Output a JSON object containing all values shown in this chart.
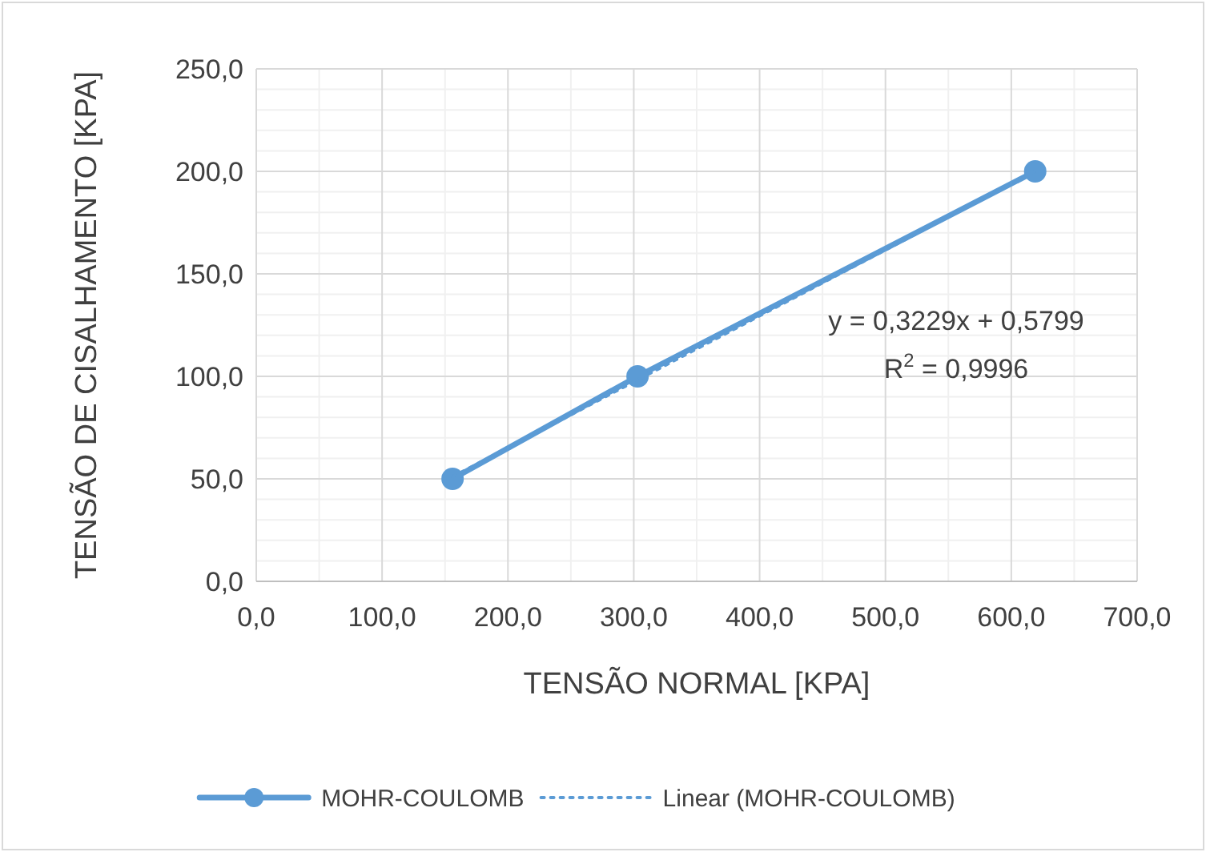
{
  "chart_data": {
    "type": "line",
    "xlabel": "TENSÃO NORMAL  [KPA]",
    "ylabel": "TENSÃO DE CISALHAMENTO [KPA]",
    "series": [
      {
        "name": "MOHR-COULOMB",
        "color": "#5b9bd5",
        "marker": "circle",
        "line_style": "solid",
        "x": [
          156,
          303,
          619
        ],
        "values": [
          50,
          100,
          200
        ]
      },
      {
        "name": "Linear (MOHR-COULOMB)",
        "color": "#5b9bd5",
        "marker": "none",
        "line_style": "dotted",
        "x": [
          156,
          619
        ],
        "values": [
          51,
          200
        ]
      }
    ],
    "xlim": [
      0,
      700
    ],
    "xticks": [
      {
        "value": 0,
        "label": "0,0"
      },
      {
        "value": 100,
        "label": "100,0"
      },
      {
        "value": 200,
        "label": "200,0"
      },
      {
        "value": 300,
        "label": "300,0"
      },
      {
        "value": 400,
        "label": "400,0"
      },
      {
        "value": 500,
        "label": "500,0"
      },
      {
        "value": 600,
        "label": "600,0"
      },
      {
        "value": 700,
        "label": "700,0"
      }
    ],
    "ylim": [
      0,
      250
    ],
    "yticks": [
      {
        "value": 0,
        "label": "0,0"
      },
      {
        "value": 50,
        "label": "50,0"
      },
      {
        "value": 100,
        "label": "100,0"
      },
      {
        "value": 150,
        "label": "150,0"
      },
      {
        "value": 200,
        "label": "200,0"
      },
      {
        "value": 250,
        "label": "250,0"
      }
    ],
    "annotations": [
      "y = 0,3229x + 0,5799\nR$^{2}$ = 0,9996"
    ],
    "grid": true,
    "legend": "bottom"
  }
}
